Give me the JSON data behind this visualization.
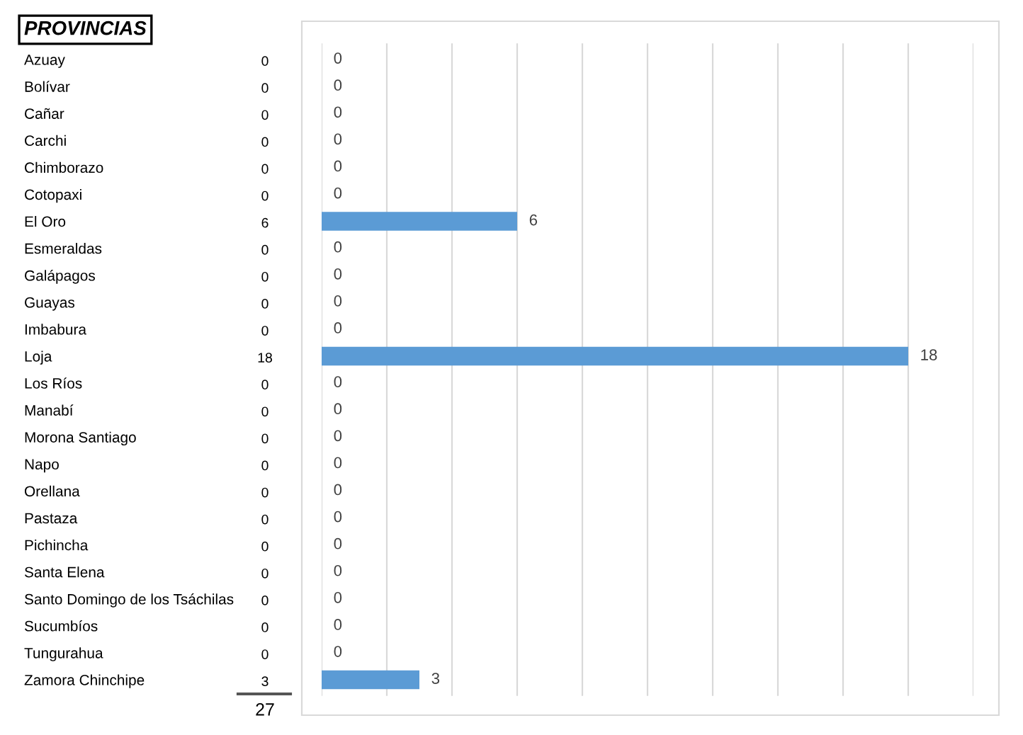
{
  "chart_data": {
    "type": "bar",
    "orientation": "horizontal",
    "title": "PROVINCIAS",
    "categories": [
      "Azuay",
      "Bolívar",
      "Cañar",
      "Carchi",
      "Chimborazo",
      "Cotopaxi",
      "El Oro",
      "Esmeraldas",
      "Galápagos",
      "Guayas",
      "Imbabura",
      "Loja",
      "Los Ríos",
      "Manabí",
      "Morona Santiago",
      "Napo",
      "Orellana",
      "Pastaza",
      "Pichincha",
      "Santa Elena",
      "Santo Domingo de los Tsáchilas",
      "Sucumbíos",
      "Tungurahua",
      "Zamora Chinchipe"
    ],
    "values": [
      0,
      0,
      0,
      0,
      0,
      0,
      6,
      0,
      0,
      0,
      0,
      18,
      0,
      0,
      0,
      0,
      0,
      0,
      0,
      0,
      0,
      0,
      0,
      3
    ],
    "color": "#5b9bd5",
    "annotations": [
      "0",
      "0",
      "0",
      "0",
      "0",
      "0",
      "6",
      "0",
      "0",
      "0",
      "0",
      "18",
      "0",
      "0",
      "0",
      "0",
      "0",
      "0",
      "0",
      "0",
      "0",
      "0",
      "0",
      "3",
      "27"
    ],
    "value_labels": [
      "0",
      "0",
      "0",
      "0",
      "0",
      "0",
      "6",
      "0",
      "0",
      "0",
      "0",
      "18",
      "0",
      "0",
      "0",
      "0",
      "0",
      "0",
      "0",
      "0",
      "0",
      "0",
      "0",
      "3"
    ],
    "xlim": [
      0,
      20
    ],
    "xticks": [
      {
        "value": 0,
        "label": null
      },
      {
        "value": 2,
        "label": null
      },
      {
        "value": 4,
        "label": null
      },
      {
        "value": 6,
        "label": null
      },
      {
        "value": 8,
        "label": null
      },
      {
        "value": 10,
        "label": null
      },
      {
        "value": 12,
        "label": null
      },
      {
        "value": 14,
        "label": null
      },
      {
        "value": 16,
        "label": null
      },
      {
        "value": 18,
        "label": null
      },
      {
        "value": 20,
        "label": null
      }
    ],
    "grid": "x",
    "tick_labels": "y"
  }
}
